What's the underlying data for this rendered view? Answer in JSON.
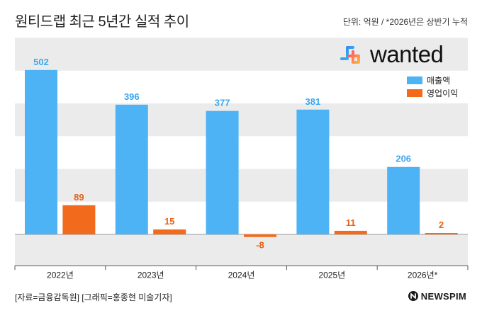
{
  "header": {
    "title": "원티드랩 최근 5년간 실적 추이",
    "unit_note": "단위: 억원 / *2026년은 상반기 누적"
  },
  "logo": {
    "text": "wanted",
    "icon": "wanted-logo-icon"
  },
  "footer": {
    "source": "[자료=금융감독원] [그래픽=홍종현 미술기자]",
    "brand": "NEWSPIM",
    "brand_icon": "newspim-logo-icon"
  },
  "colors": {
    "revenue": "#4db3f5",
    "operating_profit": "#f26a1b",
    "band": "#ebebeb",
    "axis": "#555555"
  },
  "chart_data": {
    "type": "bar",
    "categories": [
      "2022년",
      "2023년",
      "2024년",
      "2025년",
      "2026년*"
    ],
    "series": [
      {
        "name": "매출액",
        "values": [
          502,
          396,
          377,
          381,
          206
        ]
      },
      {
        "name": "영업이익",
        "values": [
          89,
          15,
          -8,
          11,
          2
        ]
      }
    ],
    "ylim": [
      -100,
      600
    ],
    "grid": "alternating horizontal bands",
    "legend_position": "top-right",
    "xlabel": "",
    "ylabel": ""
  }
}
